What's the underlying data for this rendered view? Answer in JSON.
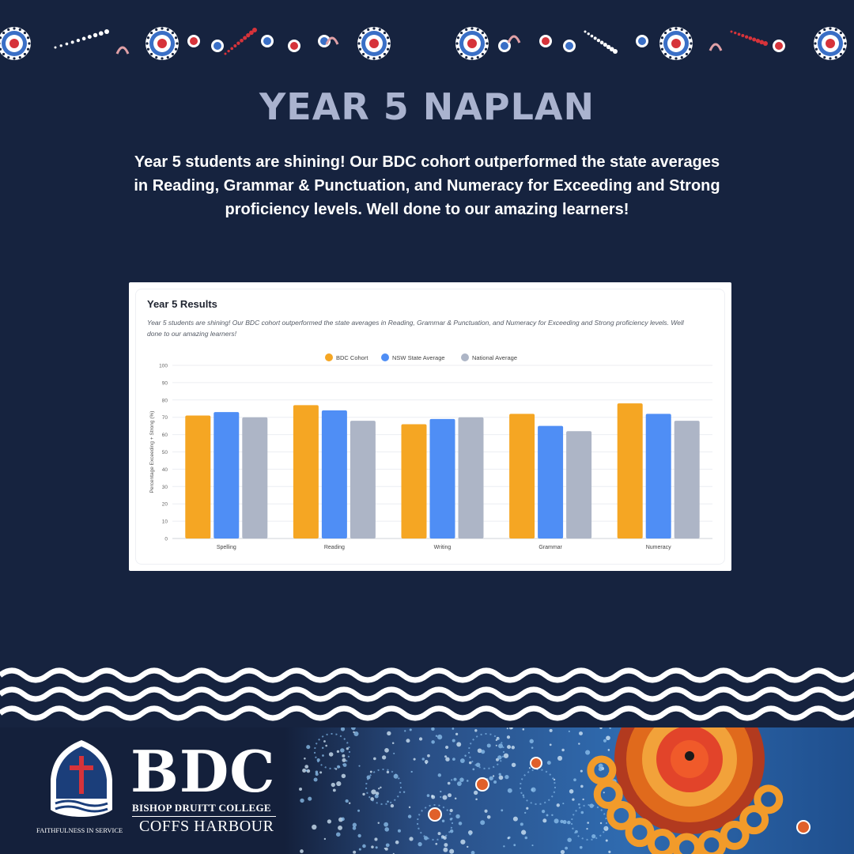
{
  "headline": "YEAR 5 NAPLAN",
  "intro": "Year 5 students are shining! Our BDC cohort outperformed the state averages in Reading, Grammar & Punctuation, and Numeracy for Exceeding and Strong proficiency levels. Well done to our amazing learners!",
  "card": {
    "title": "Year 5 Results",
    "description": "Year 5 students are shining! Our BDC cohort outperformed the state averages in Reading, Grammar & Punctuation, and Numeracy for Exceeding and Strong proficiency levels. Well done to our amazing learners!"
  },
  "chart_data": {
    "type": "bar",
    "title": "Year 5 Results",
    "xlabel": "",
    "ylabel": "Percentage Exceeding + Strong (%)",
    "ylim": [
      0,
      100
    ],
    "yticks": [
      0,
      10,
      20,
      30,
      40,
      50,
      60,
      70,
      80,
      90,
      100
    ],
    "grid": true,
    "legend_position": "top-center",
    "categories": [
      "Spelling",
      "Reading",
      "Writing",
      "Grammar",
      "Numeracy"
    ],
    "series": [
      {
        "name": "BDC Cohort",
        "color": "#f5a623",
        "values": [
          71,
          77,
          66,
          72,
          78
        ]
      },
      {
        "name": "NSW State Average",
        "color": "#4f8ef5",
        "values": [
          73,
          74,
          69,
          65,
          72
        ]
      },
      {
        "name": "National Average",
        "color": "#adb5c6",
        "values": [
          70,
          68,
          70,
          62,
          68
        ]
      }
    ]
  },
  "footer": {
    "brand": "BDC",
    "college_name": "BISHOP DRUITT COLLEGE",
    "location": "COFFS HARBOUR",
    "motto": "FAITHFULNESS IN SERVICE"
  },
  "colors": {
    "background": "#16233f",
    "headline": "#aab3cf",
    "accent_red": "#d6333a",
    "accent_blue": "#3a6fc6"
  },
  "icons": [
    "dot-art-border",
    "wave-pattern",
    "crest-icon",
    "cross-icon",
    "aboriginal-artwork"
  ]
}
